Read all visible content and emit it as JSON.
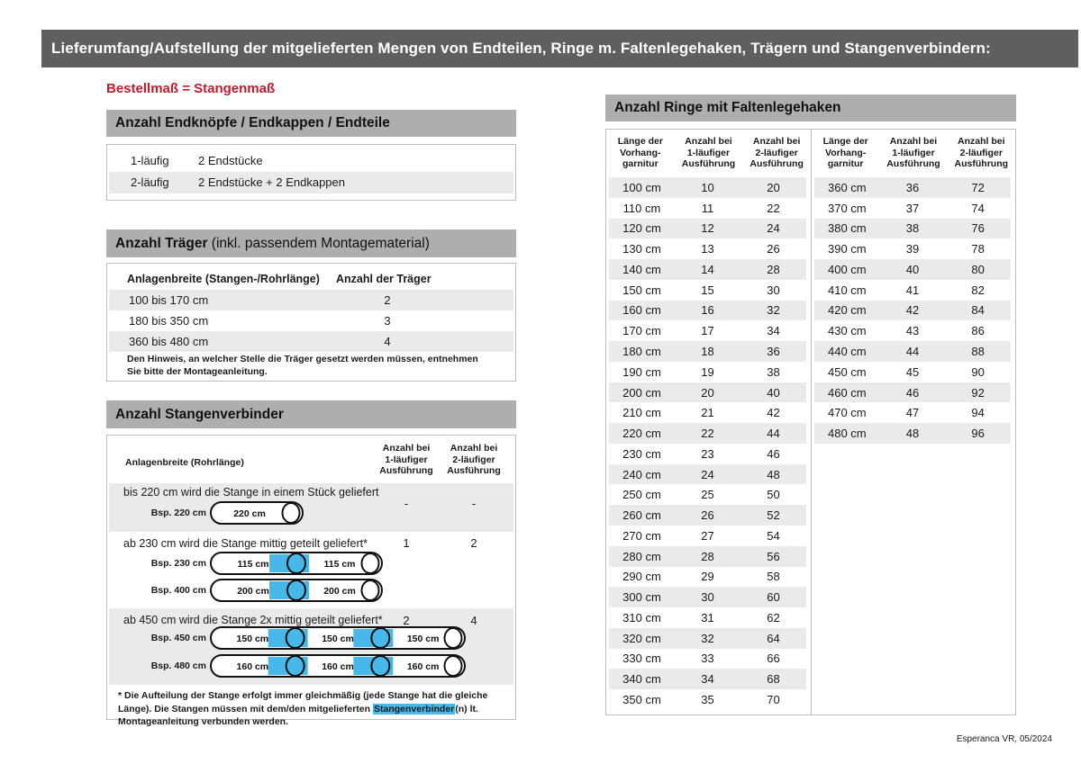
{
  "page": {
    "title": "Lieferumfang/Aufstellung der mitgelieferten Mengen von Endteilen, Ringe m. Faltenlegehaken, Trägern und Stangenverbindern:",
    "subtitle_red": "Bestellmaß = Stangenmaß",
    "footer": "Esperanca VR, 05/2024"
  },
  "colors": {
    "top_bar": "#5f5f5f",
    "section_bar": "#aeaeae",
    "row_stripe": "#eaeaea",
    "accent_red": "#c41a2b",
    "connector_blue": "#48b8e8",
    "border_gray": "#bdbdbd"
  },
  "endteile": {
    "header": "Anzahl Endknöpfe / Endkappen / Endteile",
    "rows": [
      {
        "label": "1-läufig",
        "value": "2 Endstücke"
      },
      {
        "label": "2-läufig",
        "value": "2 Endstücke + 2 Endkappen"
      }
    ]
  },
  "traeger": {
    "header_bold": "Anzahl Träger",
    "header_rest": " (inkl. passendem Montagematerial)",
    "col1": "Anlagenbreite (Stangen-/Rohrlänge)",
    "col2": "Anzahl der Träger",
    "rows": [
      {
        "range": "100 bis 170 cm",
        "count": "2"
      },
      {
        "range": "180 bis 350 cm",
        "count": "3"
      },
      {
        "range": "360 bis 480 cm",
        "count": "4"
      }
    ],
    "note": "Den Hinweis, an welcher Stelle die Träger gesetzt werden müssen, entnehmen Sie bitte der Montageanleitung."
  },
  "verbinder": {
    "header": "Anzahl Stangenverbinder",
    "col1": "Anlagenbreite (Rohrlänge)",
    "col2": [
      "Anzahl bei",
      "1-läufiger",
      "Ausführung"
    ],
    "col3": [
      "Anzahl bei",
      "2-läufiger",
      "Ausführung"
    ],
    "rows": [
      {
        "text": "bis 220 cm wird die Stange in einem Stück geliefert",
        "v1": "-",
        "v2": "-",
        "examples": [
          {
            "label": "Bsp. 220 cm",
            "sections": [
              "220 cm"
            ]
          }
        ]
      },
      {
        "text": "ab 230 cm wird die Stange mittig geteilt geliefert*",
        "v1": "1",
        "v2": "2",
        "examples": [
          {
            "label": "Bsp. 230 cm",
            "sections": [
              "115 cm",
              "115 cm"
            ]
          },
          {
            "label": "Bsp. 400 cm",
            "sections": [
              "200 cm",
              "200 cm"
            ]
          }
        ]
      },
      {
        "text": "ab 450 cm wird die Stange 2x mittig geteilt geliefert*",
        "v1": "2",
        "v2": "4",
        "examples": [
          {
            "label": "Bsp. 450 cm",
            "sections": [
              "150 cm",
              "150 cm",
              "150 cm"
            ]
          },
          {
            "label": "Bsp. 480 cm",
            "sections": [
              "160 cm",
              "160 cm",
              "160 cm"
            ]
          }
        ]
      }
    ],
    "footnote": {
      "before": "* Die Aufteilung der Stange erfolgt immer gleichmäßig (jede Stange hat die gleiche Länge). Die Stangen müssen mit dem/den mitgelieferten ",
      "highlight": "Stangenverbinder",
      "after": "(n) lt. Montageanleitung verbunden werden."
    }
  },
  "ringe": {
    "header": "Anzahl Ringe mit Faltenlegehaken",
    "col_headers": [
      [
        "Länge der",
        "Vorhang-",
        "garnitur"
      ],
      [
        "Anzahl bei",
        "1-läufiger",
        "Ausführung"
      ],
      [
        "Anzahl bei",
        "2-läufiger",
        "Ausführung"
      ]
    ],
    "left_rows": [
      [
        "100 cm",
        "10",
        "20"
      ],
      [
        "110 cm",
        "11",
        "22"
      ],
      [
        "120 cm",
        "12",
        "24"
      ],
      [
        "130 cm",
        "13",
        "26"
      ],
      [
        "140 cm",
        "14",
        "28"
      ],
      [
        "150 cm",
        "15",
        "30"
      ],
      [
        "160 cm",
        "16",
        "32"
      ],
      [
        "170 cm",
        "17",
        "34"
      ],
      [
        "180 cm",
        "18",
        "36"
      ],
      [
        "190 cm",
        "19",
        "38"
      ],
      [
        "200 cm",
        "20",
        "40"
      ],
      [
        "210 cm",
        "21",
        "42"
      ],
      [
        "220 cm",
        "22",
        "44"
      ],
      [
        "230 cm",
        "23",
        "46"
      ],
      [
        "240 cm",
        "24",
        "48"
      ],
      [
        "250 cm",
        "25",
        "50"
      ],
      [
        "260 cm",
        "26",
        "52"
      ],
      [
        "270 cm",
        "27",
        "54"
      ],
      [
        "280 cm",
        "28",
        "56"
      ],
      [
        "290 cm",
        "29",
        "58"
      ],
      [
        "300 cm",
        "30",
        "60"
      ],
      [
        "310 cm",
        "31",
        "62"
      ],
      [
        "320 cm",
        "32",
        "64"
      ],
      [
        "330 cm",
        "33",
        "66"
      ],
      [
        "340 cm",
        "34",
        "68"
      ],
      [
        "350 cm",
        "35",
        "70"
      ]
    ],
    "right_rows": [
      [
        "360 cm",
        "36",
        "72"
      ],
      [
        "370 cm",
        "37",
        "74"
      ],
      [
        "380 cm",
        "38",
        "76"
      ],
      [
        "390 cm",
        "39",
        "78"
      ],
      [
        "400 cm",
        "40",
        "80"
      ],
      [
        "410 cm",
        "41",
        "82"
      ],
      [
        "420 cm",
        "42",
        "84"
      ],
      [
        "430 cm",
        "43",
        "86"
      ],
      [
        "440 cm",
        "44",
        "88"
      ],
      [
        "450 cm",
        "45",
        "90"
      ],
      [
        "460 cm",
        "46",
        "92"
      ],
      [
        "470 cm",
        "47",
        "94"
      ],
      [
        "480 cm",
        "48",
        "96"
      ]
    ]
  }
}
